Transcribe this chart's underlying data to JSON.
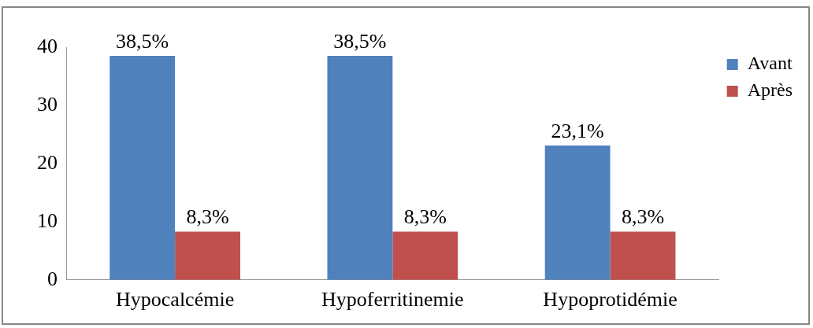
{
  "chart_data": {
    "type": "bar",
    "categories": [
      "Hypocalcémie",
      "Hypoferritinemie",
      "Hypoprotidémie"
    ],
    "series": [
      {
        "name": "Avant",
        "color": "#4f81bd",
        "values": [
          38.5,
          38.5,
          23.1
        ],
        "value_labels": [
          "38,5%",
          "38,5%",
          "23,1%"
        ]
      },
      {
        "name": "Après",
        "color": "#c0504d",
        "values": [
          8.3,
          8.3,
          8.3
        ],
        "value_labels": [
          "8,3%",
          "8,3%",
          "8,3%"
        ]
      }
    ],
    "ylim": [
      0,
      40
    ],
    "yticks": [
      0,
      10,
      20,
      30,
      40
    ],
    "grid": false,
    "legend": "top right"
  }
}
